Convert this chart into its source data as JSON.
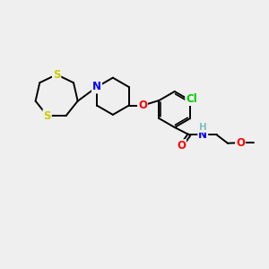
{
  "bg_color": "#efefef",
  "bond_color": "#000000",
  "N_color": "#0000ff",
  "O_color": "#ff0000",
  "S_color": "#cccc00",
  "Cl_color": "#00cc00",
  "H_color": "#7fbfbf",
  "line_width": 1.4,
  "font_size": 8.5,
  "figsize": [
    3.0,
    3.0
  ],
  "dpi": 100,
  "xlim": [
    0,
    10
  ],
  "ylim": [
    0,
    10
  ]
}
